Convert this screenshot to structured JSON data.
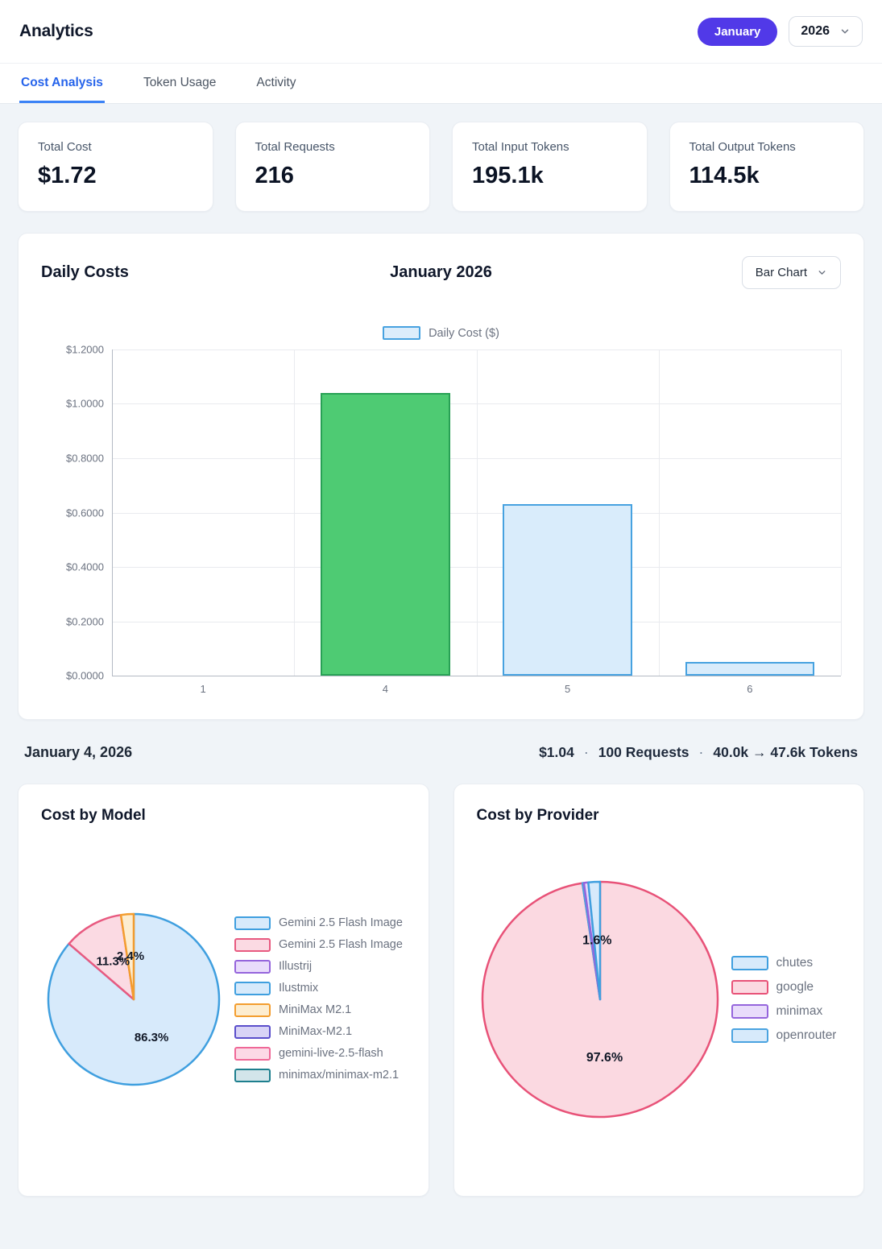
{
  "header": {
    "title": "Analytics",
    "month_button": "January",
    "year": "2026"
  },
  "tabs": [
    {
      "label": "Cost Analysis",
      "active": true
    },
    {
      "label": "Token Usage",
      "active": false
    },
    {
      "label": "Activity",
      "active": false
    }
  ],
  "stats": [
    {
      "label": "Total Cost",
      "value": "$1.72"
    },
    {
      "label": "Total Requests",
      "value": "216"
    },
    {
      "label": "Total Input Tokens",
      "value": "195.1k"
    },
    {
      "label": "Total Output Tokens",
      "value": "114.5k"
    }
  ],
  "controls": {
    "chart_type": "Bar Chart"
  },
  "summary": {
    "date": "January 4, 2026",
    "cost": "$1.04",
    "separator": "·",
    "requests": "100 Requests",
    "tokens": "40.0k → 47.6k Tokens"
  },
  "chart_data": [
    {
      "type": "bar",
      "title": "Daily Costs",
      "subtitle": "January 2026",
      "legend": [
        {
          "label": "Daily Cost ($)",
          "fill": "#dcedfb",
          "stroke": "#47a2e0"
        }
      ],
      "categories": [
        "1",
        "4",
        "5",
        "6"
      ],
      "values": [
        0,
        1.04,
        0.63,
        0.05
      ],
      "ylim": [
        0,
        1.2
      ],
      "yticks": [
        "$1.2000",
        "$1.0000",
        "$0.8000",
        "$0.6000",
        "$0.4000",
        "$0.2000",
        "$0.0000"
      ],
      "grid": true,
      "legend_position": "top",
      "selected_index": 1,
      "colors": {
        "fill": "#d9ecfb",
        "stroke": "#47a2e0",
        "selected_fill": "#4ecb73",
        "selected_stroke": "#28a155"
      }
    },
    {
      "type": "pie",
      "title": "Cost by Model",
      "legend_position": "right",
      "draw_order": [
        0,
        1,
        2,
        3,
        4,
        5,
        6,
        7
      ],
      "slices": [
        {
          "label": "Gemini 2.5 Flash Image",
          "pct": 86.3,
          "pct_label": "86.3%",
          "fill": "#d7eafb",
          "stroke": "#3f9fdf"
        },
        {
          "label": "Gemini 2.5 Flash Image",
          "pct": 11.3,
          "pct_label": "11.3%",
          "fill": "#fbdae3",
          "stroke": "#e85a80"
        },
        {
          "label": "Illustrij",
          "pct": 0,
          "fill": "#e9dcfb",
          "stroke": "#9565dc"
        },
        {
          "label": "Ilustmix",
          "pct": 0,
          "fill": "#d7eafb",
          "stroke": "#3f9fdf"
        },
        {
          "label": "MiniMax M2.1",
          "pct": 2.4,
          "pct_label": "2.4%",
          "fill": "#fdedd0",
          "stroke": "#f39d2f"
        },
        {
          "label": "MiniMax-M2.1",
          "pct": 0,
          "fill": "#d8d3f6",
          "stroke": "#5a4ecb"
        },
        {
          "label": "gemini-live-2.5-flash",
          "pct": 0,
          "fill": "#fcd9e6",
          "stroke": "#ef6897"
        },
        {
          "label": "minimax/minimax-m2.1",
          "pct": 0,
          "fill": "#d3e5ea",
          "stroke": "#1e7f8e"
        }
      ]
    },
    {
      "type": "pie",
      "title": "Cost by Provider",
      "legend_position": "right",
      "draw_order": [
        1,
        3,
        2,
        0
      ],
      "slices": [
        {
          "label": "chutes",
          "pct": 1.6,
          "pct_label": "1.6%",
          "fill": "#d7eafb",
          "stroke": "#3f9fdf"
        },
        {
          "label": "google",
          "pct": 97.6,
          "pct_label": "97.6%",
          "fill": "#fbd9e1",
          "stroke": "#e85278"
        },
        {
          "label": "minimax",
          "pct": 0.6,
          "fill": "#e9dcfb",
          "stroke": "#9565dc"
        },
        {
          "label": "openrouter",
          "pct": 0.2,
          "fill": "#d7eafb",
          "stroke": "#4aa3e0"
        }
      ]
    }
  ]
}
